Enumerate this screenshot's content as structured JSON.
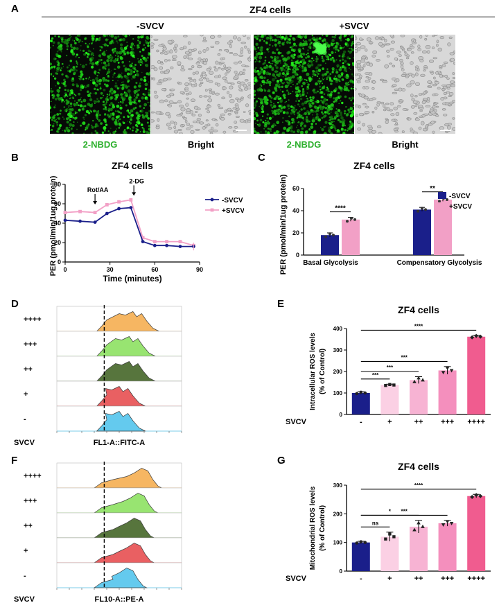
{
  "panelA": {
    "letter": "A",
    "title": "ZF4 cells",
    "conditions": [
      "-SVCV",
      "+SVCV"
    ],
    "image_labels": [
      "2-NBDG",
      "Bright",
      "2-NBDG",
      "Bright"
    ],
    "colors": {
      "fluor_label": "#2db02d"
    }
  },
  "panelB": {
    "letter": "B",
    "title": "ZF4 cells",
    "annotations": [
      "Rot/AA",
      "2-DG"
    ],
    "chart_data": {
      "type": "line",
      "xlabel": "Time (minutes)",
      "ylabel": "PER (pmol/min/1ug protein)",
      "xlim": [
        0,
        90
      ],
      "ylim": [
        0,
        80
      ],
      "xticks": [
        0,
        30,
        60,
        90
      ],
      "yticks": [
        0,
        20,
        40,
        60,
        80
      ],
      "x": [
        0,
        10,
        20,
        28,
        36,
        44,
        52,
        60,
        68,
        77,
        86
      ],
      "series": [
        {
          "name": "-SVCV",
          "color": "#1a1f8a",
          "values": [
            43,
            42,
            41,
            50,
            55,
            56,
            21,
            17,
            17,
            16,
            16
          ]
        },
        {
          "name": "+SVCV",
          "color": "#f2a0c6",
          "values": [
            51,
            52,
            51,
            59,
            62,
            64,
            25,
            21,
            21,
            21,
            17
          ]
        }
      ],
      "legend": "right"
    }
  },
  "panelC": {
    "letter": "C",
    "title": "ZF4 cells",
    "chart_data": {
      "type": "bar",
      "categories": [
        "Basal Glycolysis",
        "Compensatory Glycolysis"
      ],
      "ylabel": "PER (pmol/min/1ug protein)",
      "ylim": [
        0,
        60
      ],
      "yticks": [
        0,
        20,
        40,
        60
      ],
      "series": [
        {
          "name": "-SVCV",
          "color": "#1a1f8a",
          "values": [
            18,
            41
          ]
        },
        {
          "name": "+SVCV",
          "color": "#f2a0c6",
          "values": [
            32,
            50
          ]
        }
      ],
      "significance": [
        "****",
        "**"
      ],
      "legend": "top-right"
    }
  },
  "panelD": {
    "letter": "D",
    "row_labels": [
      "++++",
      "+++",
      "++",
      "+",
      "-"
    ],
    "svcv_label": "SVCV",
    "xlabel": "FL1-A::FITC-A",
    "colors": [
      "#f6b35a",
      "#93e36a",
      "#4f6e33",
      "#e8585a",
      "#5cc8ee"
    ]
  },
  "panelE": {
    "letter": "E",
    "title": "ZF4 cells",
    "chart_data": {
      "type": "bar",
      "categories": [
        "-",
        "+",
        "++",
        "+++",
        "++++"
      ],
      "xlabel": "SVCV",
      "ylabel": "Intracellular ROS levels (% of Control)",
      "ylabel_lines": [
        "Intracellular ROS levels",
        "(% of Control)"
      ],
      "ylim": [
        0,
        400
      ],
      "yticks": [
        0,
        100,
        200,
        300,
        400
      ],
      "values": [
        100,
        137,
        160,
        205,
        362
      ],
      "colors": [
        "#1a1f8a",
        "#fbd0e4",
        "#f7b3d3",
        "#f48fbd",
        "#f05c8f"
      ],
      "significance": [
        "***",
        "***",
        "***",
        "****"
      ]
    }
  },
  "panelF": {
    "letter": "F",
    "row_labels": [
      "++++",
      "+++",
      "++",
      "+",
      "-"
    ],
    "svcv_label": "SVCV",
    "xlabel": "FL10-A::PE-A",
    "colors": [
      "#f6b35a",
      "#93e36a",
      "#4f6e33",
      "#e8585a",
      "#5cc8ee"
    ]
  },
  "panelG": {
    "letter": "G",
    "title": "ZF4 cells",
    "chart_data": {
      "type": "bar",
      "categories": [
        "-",
        "+",
        "++",
        "+++",
        "++++"
      ],
      "xlabel": "SVCV",
      "ylabel": "Mitochondrial ROS levels (% of Control)",
      "ylabel_lines": [
        "Mitochondrial ROS levels",
        "(% of Control)"
      ],
      "ylim": [
        0,
        300
      ],
      "yticks": [
        0,
        100,
        200,
        300
      ],
      "values": [
        100,
        120,
        155,
        167,
        262
      ],
      "colors": [
        "#1a1f8a",
        "#fbd0e4",
        "#f7b3d3",
        "#f48fbd",
        "#f05c8f"
      ],
      "significance": [
        "ns",
        "*",
        "***",
        "****"
      ]
    }
  }
}
